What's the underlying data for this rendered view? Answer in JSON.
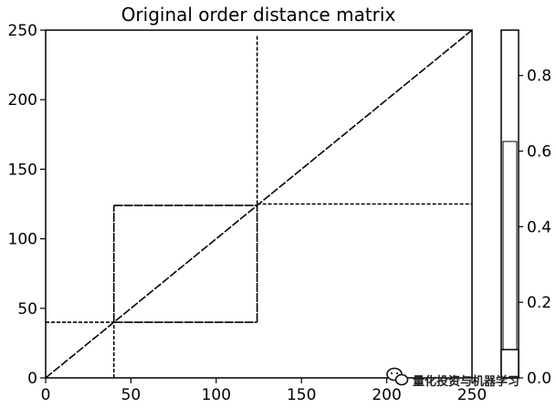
{
  "chart_data": {
    "type": "heatmap",
    "title": "Original order distance matrix",
    "xlabel": "",
    "ylabel": "",
    "xlim": [
      0,
      250
    ],
    "ylim": [
      0,
      250
    ],
    "x_ticks": [
      0,
      50,
      100,
      150,
      200,
      250
    ],
    "y_ticks": [
      0,
      50,
      100,
      150,
      200,
      250
    ],
    "grid": false,
    "colorbar": {
      "placement": "right",
      "range": [
        0.0,
        0.92
      ],
      "ticks": [
        "0.0",
        "0.2",
        "0.4",
        "0.6",
        "0.8"
      ],
      "tick_values": [
        0.0,
        0.2,
        0.4,
        0.6,
        0.8
      ]
    },
    "diagonal": {
      "from": [
        0,
        0
      ],
      "to": [
        250,
        250
      ]
    },
    "segments": [
      {
        "from": [
          40,
          124
        ],
        "to": [
          124,
          124
        ]
      },
      {
        "from": [
          40,
          40
        ],
        "to": [
          40,
          124
        ]
      },
      {
        "from": [
          124,
          40
        ],
        "to": [
          124,
          124
        ]
      },
      {
        "from": [
          40,
          40
        ],
        "to": [
          124,
          40
        ]
      },
      {
        "from": [
          124,
          125
        ],
        "to": [
          250,
          125
        ]
      },
      {
        "from": [
          124,
          125
        ],
        "to": [
          124,
          246
        ]
      },
      {
        "from": [
          0,
          40
        ],
        "to": [
          40,
          40
        ]
      },
      {
        "from": [
          40,
          0
        ],
        "to": [
          40,
          40
        ]
      }
    ]
  },
  "watermark": {
    "text": "量化投资与机器学习",
    "icon": "wechat-icon"
  }
}
